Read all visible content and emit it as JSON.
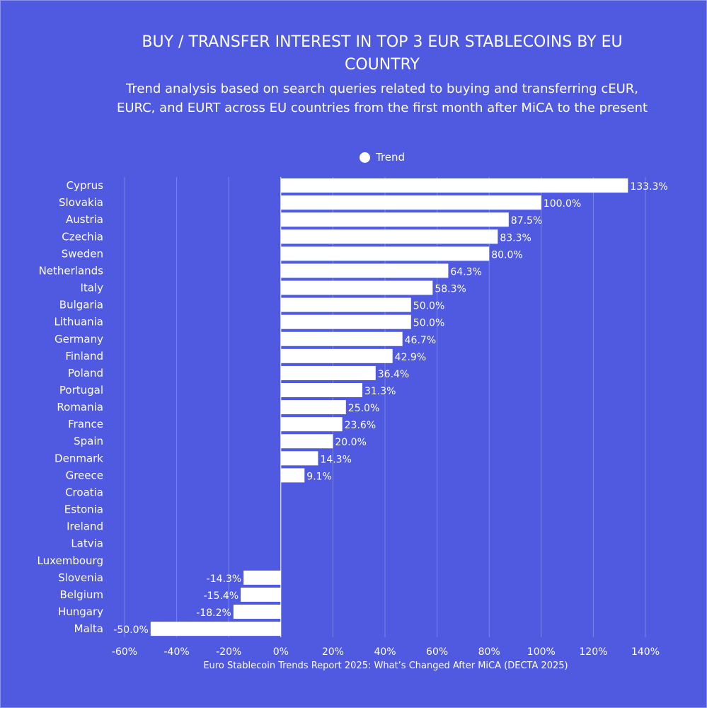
{
  "chart_data": {
    "type": "bar",
    "orientation": "horizontal",
    "title": "BUY / TRANSFER INTEREST IN TOP 3 EUR STABLECOINS BY EU COUNTRY",
    "subtitle": "Trend analysis based on search queries related to buying and transferring cEUR, EURC, and EURT across EU countries from the first month after MiCA to the present",
    "source": "Euro Stablecoin Trends Report 2025: What’s Changed After MiCA (DECTA 2025)",
    "legend": {
      "entries": [
        "Trend"
      ],
      "placement": "top"
    },
    "categories": [
      "Cyprus",
      "Slovakia",
      "Austria",
      "Czechia",
      "Sweden",
      "Netherlands",
      "Italy",
      "Bulgaria",
      "Lithuania",
      "Germany",
      "Finland",
      "Poland",
      "Portugal",
      "Romania",
      "France",
      "Spain",
      "Denmark",
      "Greece",
      "Croatia",
      "Estonia",
      "Ireland",
      "Latvia",
      "Luxembourg",
      "Slovenia",
      "Belgium",
      "Hungary",
      "Malta"
    ],
    "series": [
      {
        "name": "Trend",
        "values": [
          133.3,
          100.0,
          87.5,
          83.3,
          80.0,
          64.3,
          58.3,
          50.0,
          50.0,
          46.7,
          42.9,
          36.4,
          31.3,
          25.0,
          23.6,
          20.0,
          14.3,
          9.1,
          null,
          null,
          null,
          null,
          null,
          -14.3,
          -15.4,
          -18.2,
          -50.0
        ]
      }
    ],
    "data_labels": [
      "133.3%",
      "100.0%",
      "87.5%",
      "83.3%",
      "80.0%",
      "64.3%",
      "58.3%",
      "50.0%",
      "50.0%",
      "46.7%",
      "42.9%",
      "36.4%",
      "31.3%",
      "25.0%",
      "23.6%",
      "20.0%",
      "14.3%",
      "9.1%",
      "",
      "",
      "",
      "",
      "",
      "-14.3%",
      "-15.4%",
      "-18.2%",
      "-50.0%"
    ],
    "xlim": [
      -60,
      140
    ],
    "xticks": [
      -60,
      -40,
      -20,
      0,
      20,
      40,
      60,
      80,
      100,
      120,
      140
    ],
    "xtick_labels": [
      "-60%",
      "-40%",
      "-20%",
      "0%",
      "20%",
      "40%",
      "60%",
      "80%",
      "100%",
      "120%",
      "140%"
    ],
    "grid": true,
    "colors": {
      "background": "#4f5ae0",
      "bar": "#ffffff",
      "grid": "#7b84e8"
    }
  }
}
